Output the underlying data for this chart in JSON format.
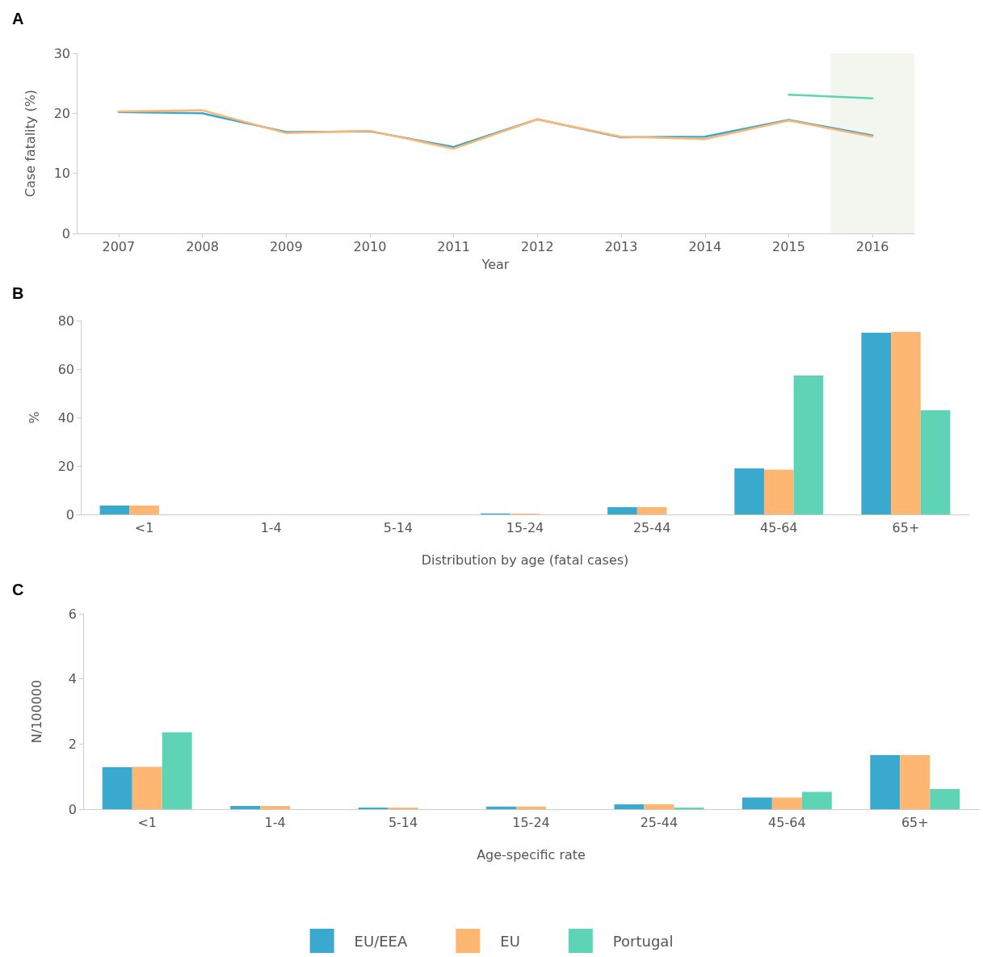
{
  "chart_data": [
    {
      "type": "line",
      "title": "A",
      "xlabel": "Year",
      "ylabel": "Case fatality (%)",
      "x": [
        2007,
        2008,
        2009,
        2010,
        2011,
        2012,
        2013,
        2014,
        2015,
        2016
      ],
      "xlim": [
        2006.5,
        2016.5
      ],
      "xticks": [
        2007,
        2008,
        2009,
        2010,
        2011,
        2012,
        2013,
        2014,
        2015,
        2016
      ],
      "ylim": [
        0,
        30
      ],
      "yticks": [
        0,
        10,
        20,
        30
      ],
      "grid": false,
      "legend": false,
      "marker": "none",
      "line_style": "solid",
      "bands": [
        {
          "axis": "x",
          "from": 2015.5,
          "to": 2016.5,
          "color": "#f3f6ef"
        }
      ],
      "series": [
        {
          "color": "#3aa9ce",
          "values": [
            20.2,
            20.0,
            16.9,
            17.0,
            14.4,
            19.0,
            16.0,
            16.1,
            18.9,
            16.3
          ]
        },
        {
          "color": "#feb772",
          "values": [
            20.3,
            20.5,
            16.7,
            17.1,
            14.1,
            19.0,
            16.1,
            15.7,
            18.8,
            16.1
          ]
        },
        {
          "color": "#5ed3b5",
          "values": [
            null,
            null,
            null,
            null,
            null,
            null,
            null,
            null,
            23.1,
            22.5
          ]
        }
      ]
    },
    {
      "type": "bar",
      "title": "B",
      "xlabel": "Distribution by age (fatal cases)",
      "ylabel": "%",
      "categories": [
        "<1",
        "1-4",
        "5-14",
        "15-24",
        "25-44",
        "45-64",
        "65+"
      ],
      "ylim": [
        0,
        80
      ],
      "yticks": [
        0,
        20,
        40,
        60,
        80
      ],
      "grid": false,
      "legend": false,
      "series": [
        {
          "color": "#3aa9ce",
          "values": [
            3.7,
            0,
            0,
            0.4,
            3.0,
            19.0,
            75.0
          ]
        },
        {
          "color": "#feb772",
          "values": [
            3.7,
            0,
            0,
            0.3,
            3.0,
            18.5,
            75.3
          ]
        },
        {
          "color": "#5ed3b5",
          "values": [
            0,
            0,
            0,
            0,
            0,
            57.3,
            43.0
          ]
        }
      ]
    },
    {
      "type": "bar",
      "title": "C",
      "xlabel": "Age-specific rate",
      "ylabel": "N/100000",
      "categories": [
        "<1",
        "1-4",
        "5-14",
        "15-24",
        "25-44",
        "45-64",
        "65+"
      ],
      "ylim": [
        0,
        6
      ],
      "yticks": [
        0,
        2,
        4,
        6
      ],
      "grid": false,
      "legend": "bottom",
      "series": [
        {
          "name": "EU/EEA",
          "color": "#3aa9ce",
          "values": [
            1.29,
            0.1,
            0.05,
            0.08,
            0.15,
            0.36,
            1.66
          ]
        },
        {
          "name": "EU",
          "color": "#feb772",
          "values": [
            1.3,
            0.1,
            0.05,
            0.08,
            0.15,
            0.36,
            1.66
          ]
        },
        {
          "name": "Portugal",
          "color": "#5ed3b5",
          "values": [
            2.36,
            0,
            0,
            0,
            0.05,
            0.53,
            0.62
          ]
        }
      ]
    }
  ]
}
